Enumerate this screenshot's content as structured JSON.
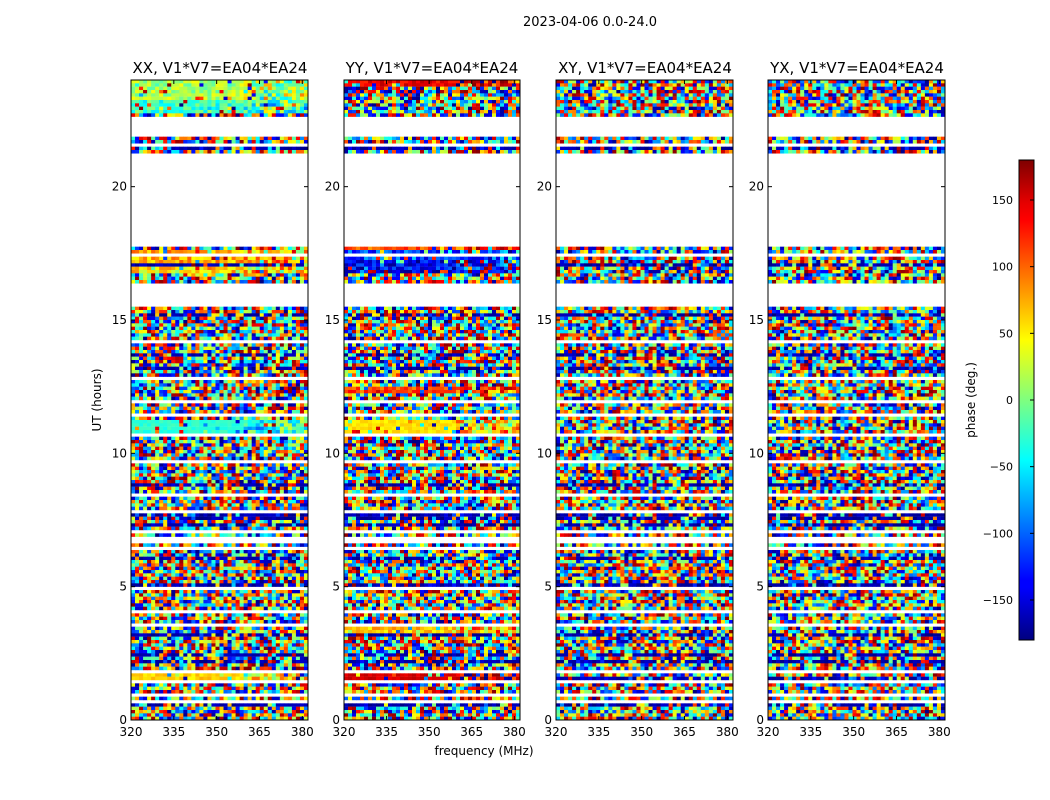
{
  "chart_data": {
    "type": "heatmap",
    "suptitle": "2023-04-06 0.0-24.0",
    "xlabel": "frequency (MHz)",
    "ylabel": "UT (hours)",
    "xlim": [
      320,
      382
    ],
    "ylim": [
      0,
      24
    ],
    "xticks": [
      320,
      335,
      350,
      365,
      380
    ],
    "yticks": [
      0,
      5,
      10,
      15,
      20
    ],
    "panels": [
      {
        "title": "XX, V1*V7=EA04*EA24"
      },
      {
        "title": "YY, V1*V7=EA04*EA24"
      },
      {
        "title": "XY, V1*V7=EA04*EA24"
      },
      {
        "title": "YX, V1*V7=EA04*EA24"
      }
    ],
    "colorbar": {
      "label": "phase (deg.)",
      "range": [
        -180,
        180
      ],
      "ticks": [
        -150,
        -100,
        -50,
        0,
        50,
        100,
        150
      ],
      "colormap": "jet"
    },
    "data_gaps_hours": [
      [
        15.5,
        16.4
      ],
      [
        17.8,
        21.2
      ],
      [
        21.9,
        22.6
      ]
    ],
    "bands": {
      "XX": [
        [
          17.1,
          17.6,
          75,
          30
        ],
        [
          16.7,
          17.05,
          60,
          40
        ],
        [
          10.7,
          11.2,
          -30,
          10
        ],
        [
          1.4,
          1.75,
          60,
          15
        ],
        [
          23.3,
          24.0,
          15,
          30
        ],
        [
          22.7,
          23.2,
          -25,
          30
        ]
      ],
      "YY": [
        [
          17.3,
          17.6,
          -110,
          40
        ],
        [
          16.8,
          17.2,
          -140,
          40
        ],
        [
          17.6,
          17.75,
          110,
          30
        ],
        [
          10.7,
          11.2,
          55,
          10
        ],
        [
          1.4,
          1.75,
          150,
          10
        ],
        [
          23.75,
          24.0,
          140,
          20
        ],
        [
          3.3,
          3.6,
          65,
          25
        ],
        [
          12.2,
          12.45,
          110,
          25
        ]
      ],
      "XY": [],
      "YX": []
    }
  }
}
